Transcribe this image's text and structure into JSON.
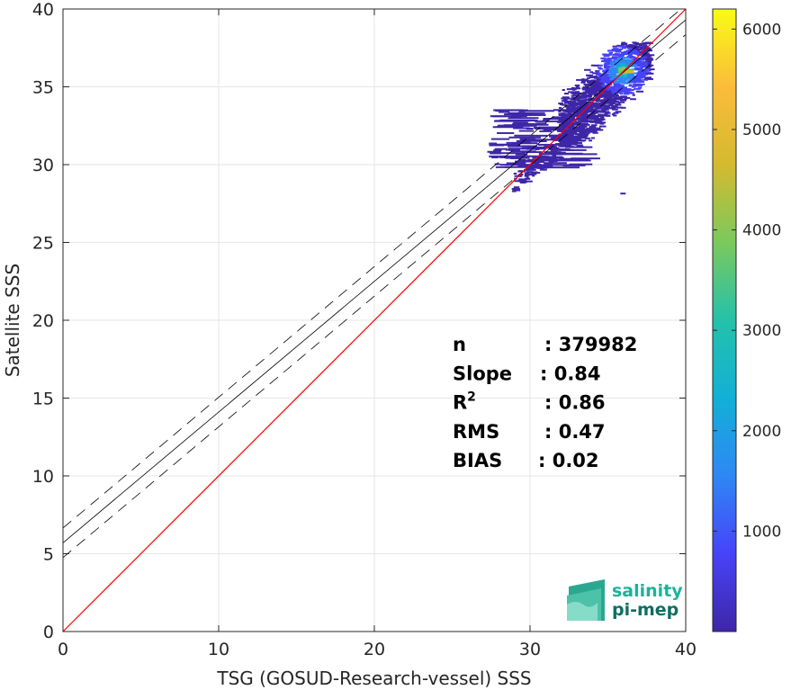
{
  "chart_data": {
    "type": "scatter",
    "subtype": "density-scatter-2d-histogram",
    "xlabel": "TSG (GOSUD-Research-vessel) SSS",
    "ylabel": "Satellite SSS",
    "xlim": [
      0,
      40
    ],
    "ylim": [
      0,
      40
    ],
    "xticks": [
      "0",
      "10",
      "20",
      "30",
      "40"
    ],
    "yticks": [
      "0",
      "5",
      "10",
      "15",
      "20",
      "25",
      "30",
      "35",
      "40"
    ],
    "grid": true,
    "lines": {
      "identity": {
        "slope": 1,
        "intercept": 0,
        "color": "#ff0000"
      },
      "fit": {
        "slope": 0.84,
        "intercept": 5.7,
        "color": "#000000"
      },
      "fit_upper": {
        "slope": 0.84,
        "intercept": 6.65,
        "style": "dashed"
      },
      "fit_lower": {
        "slope": 0.84,
        "intercept": 4.75,
        "style": "dashed"
      }
    },
    "density_cloud": {
      "x_range": [
        27,
        37.6
      ],
      "y_range": [
        28.2,
        37.8
      ],
      "core": [
        35.8,
        36.1
      ],
      "colormap": "parula"
    },
    "colorbar": {
      "min": 0,
      "max": 6200,
      "ticks": [
        "1000",
        "2000",
        "3000",
        "4000",
        "5000",
        "6000"
      ],
      "tick_values": [
        1000,
        2000,
        3000,
        4000,
        5000,
        6000
      ],
      "colors": [
        "#3e26a8",
        "#4743f8",
        "#2f87f5",
        "#12b0d6",
        "#25c1aa",
        "#7bc95d",
        "#d4ba2f",
        "#fbbc3b",
        "#f9fb15"
      ]
    },
    "stats": [
      {
        "label": "n",
        "value": ": 379982"
      },
      {
        "label": "Slope",
        "value": ": 0.84"
      },
      {
        "label": "R",
        "sup": "2",
        "value": ": 0.86"
      },
      {
        "label": "RMS",
        "value": ": 0.47"
      },
      {
        "label": "BIAS",
        "value": ": 0.02"
      }
    ]
  },
  "logo": {
    "line1": "salinity",
    "line2": "pi-mep",
    "color_top": "#1bb39a",
    "color_bottom": "#0f6e63"
  }
}
